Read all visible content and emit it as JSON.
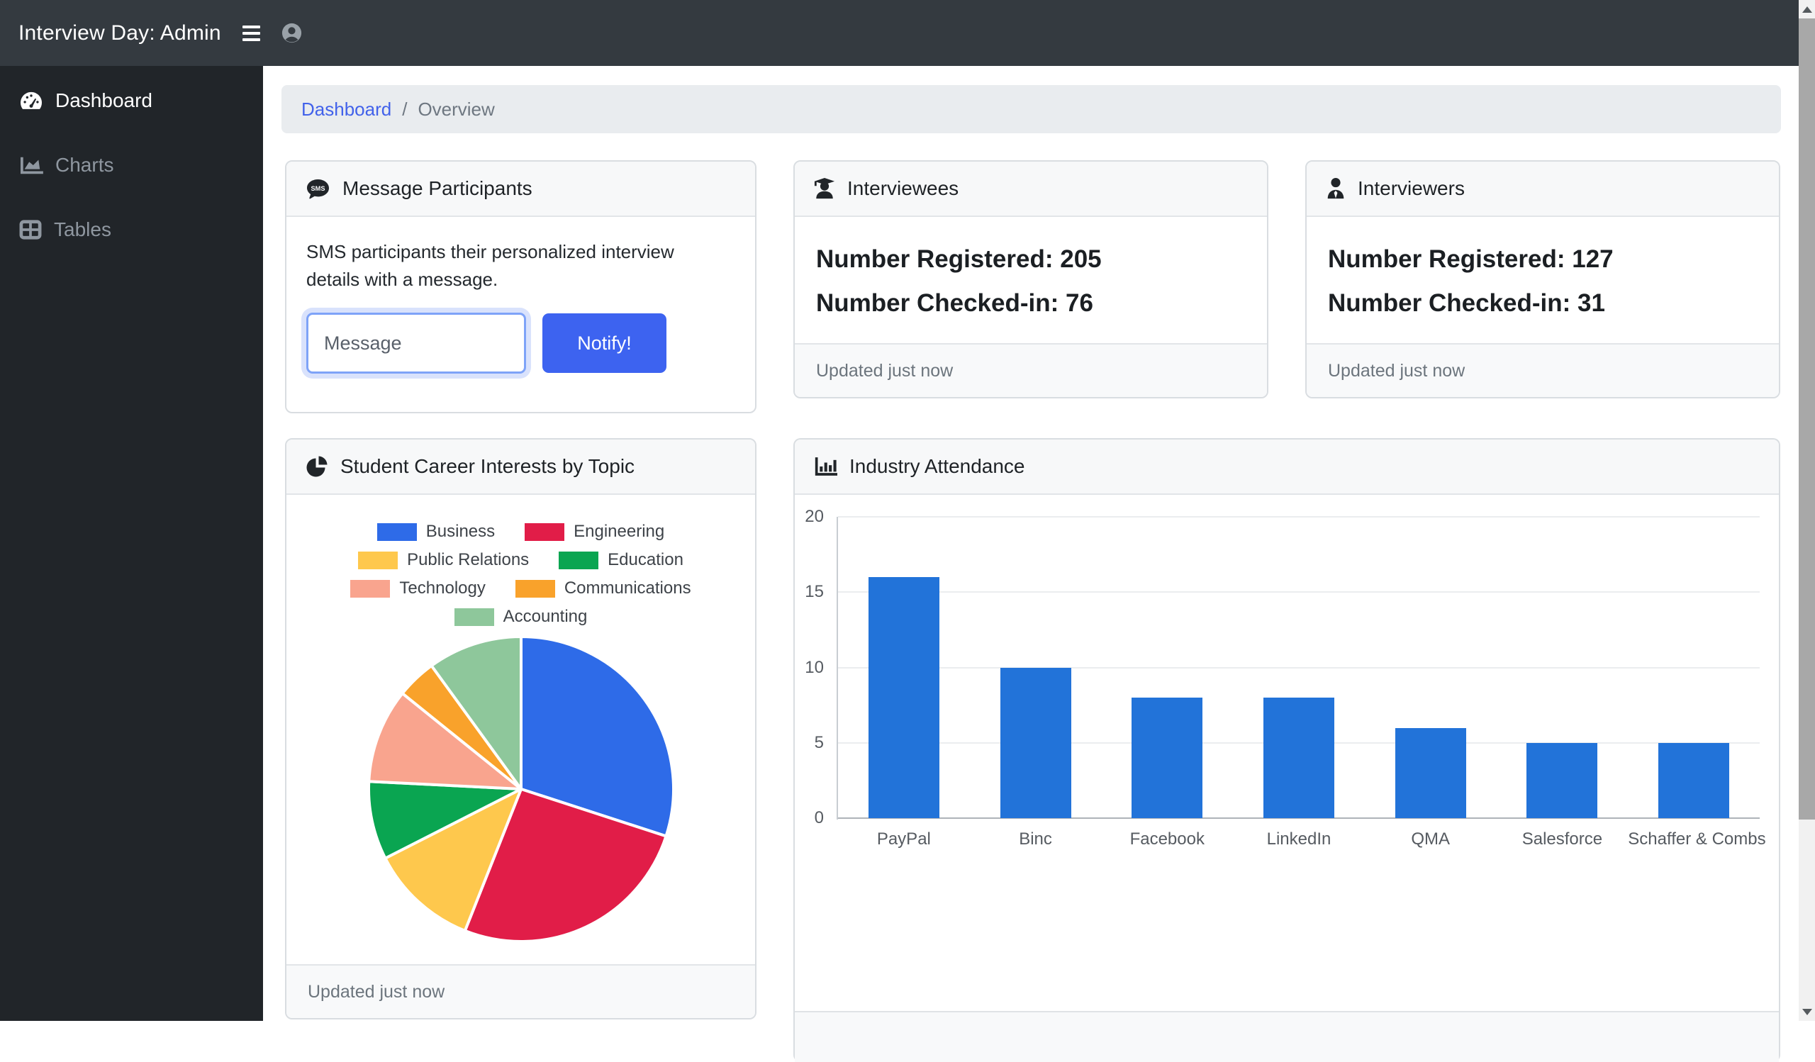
{
  "navbar": {
    "brand": "Interview Day: Admin"
  },
  "sidebar": {
    "items": [
      {
        "label": "Dashboard",
        "icon": "gauge-icon",
        "active": true
      },
      {
        "label": "Charts",
        "icon": "area-chart-icon",
        "active": false
      },
      {
        "label": "Tables",
        "icon": "table-icon",
        "active": false
      }
    ]
  },
  "breadcrumb": {
    "link": "Dashboard",
    "separator": "/",
    "current": "Overview"
  },
  "cards": {
    "message_participants": {
      "title": "Message Participants",
      "body_text": "SMS participants their personalized interview details with a message.",
      "input_placeholder": "Message",
      "button_label": "Notify!"
    },
    "interviewees": {
      "title": "Interviewees",
      "lines": [
        "Number Registered: 205",
        "Number Checked-in: 76"
      ],
      "footer": "Updated just now"
    },
    "interviewers": {
      "title": "Interviewers",
      "lines": [
        "Number Registered: 127",
        "Number Checked-in: 31"
      ],
      "footer": "Updated just now"
    },
    "career_interests": {
      "title": "Student Career Interests by Topic",
      "footer": "Updated just now"
    },
    "industry_attendance": {
      "title": "Industry Attendance"
    }
  },
  "colors": {
    "navbar_bg": "#343a40",
    "sidebar_bg": "#212529",
    "accent_blue": "#3d63f0",
    "link_blue": "#4262ea",
    "bar_blue": "#2273d9"
  },
  "chart_data": [
    {
      "type": "pie",
      "title": "Student Career Interests by Topic",
      "labels": [
        "Business",
        "Engineering",
        "Public Relations",
        "Education",
        "Technology",
        "Communications",
        "Accounting"
      ],
      "values": [
        30,
        26,
        11.5,
        8.3,
        10,
        4.2,
        10
      ],
      "unit": "percent-of-circle",
      "colors": [
        "#2e6be8",
        "#e11d48",
        "#fec84d",
        "#0aa551",
        "#f9a48e",
        "#f9a22b",
        "#8ec79b"
      ],
      "legend_position": "top",
      "slice_border_color": "#ffffff"
    },
    {
      "type": "bar",
      "title": "Industry Attendance",
      "categories": [
        "PayPal",
        "Binc",
        "Facebook",
        "LinkedIn",
        "QMA",
        "Salesforce",
        "Schaffer & Combs"
      ],
      "values": [
        16,
        10,
        8,
        8,
        6,
        5,
        5
      ],
      "ylim": [
        0,
        20
      ],
      "yticks": [
        0,
        5,
        10,
        15,
        20
      ],
      "grid": true,
      "bar_color": "#2273d9",
      "legend_position": "none"
    }
  ]
}
